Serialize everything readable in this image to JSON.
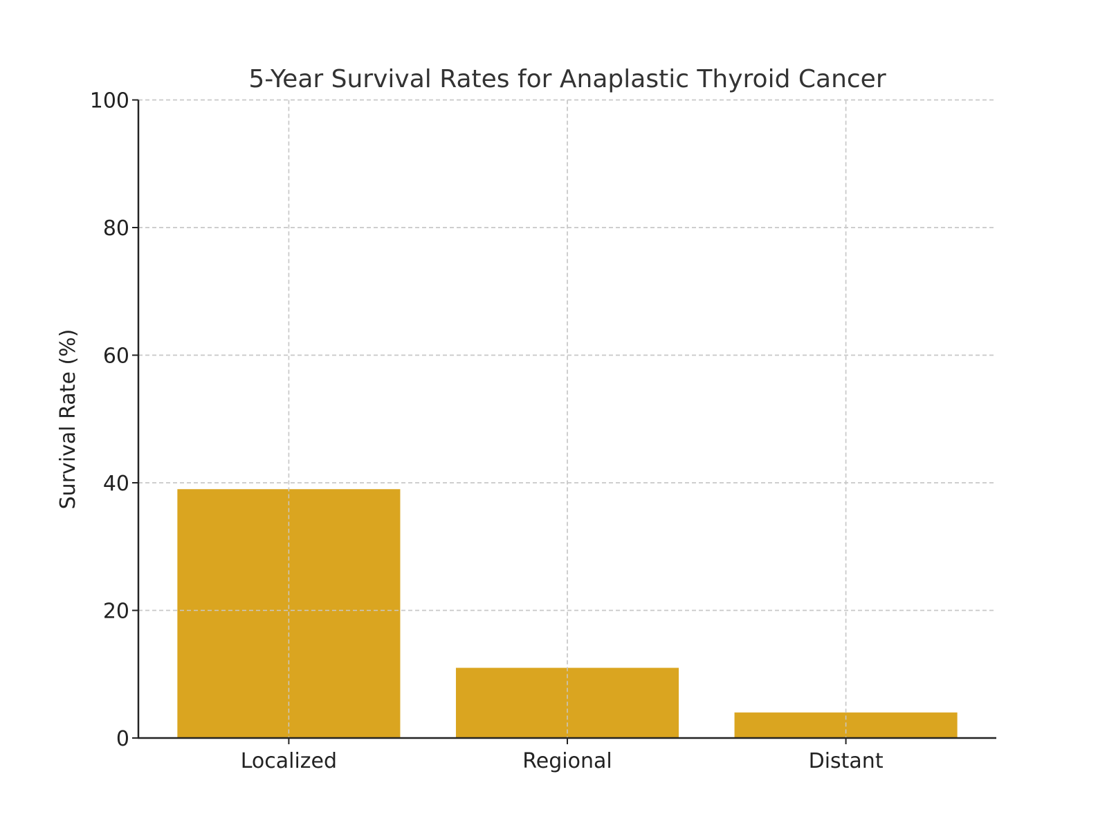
{
  "chart_data": {
    "type": "bar",
    "title": "5-Year Survival Rates for Anaplastic Thyroid Cancer",
    "xlabel": "",
    "ylabel": "Survival Rate (%)",
    "categories": [
      "Localized",
      "Regional",
      "Distant"
    ],
    "values": [
      39,
      11,
      4
    ],
    "ylim": [
      0,
      100
    ],
    "yticks": [
      0,
      20,
      40,
      60,
      80,
      100
    ],
    "grid": true,
    "grid_style": "dashed",
    "bar_color": "#DAA520"
  }
}
